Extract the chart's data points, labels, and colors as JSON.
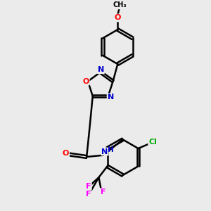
{
  "bg_color": "#ebebeb",
  "bond_color": "#000000",
  "bond_width": 1.8,
  "dbo": 0.07,
  "atom_colors": {
    "O": "#ff0000",
    "N": "#0000cc",
    "F": "#ff00ff",
    "Cl": "#00aa00",
    "C": "#000000"
  },
  "figsize": [
    3.0,
    3.0
  ],
  "dpi": 100
}
